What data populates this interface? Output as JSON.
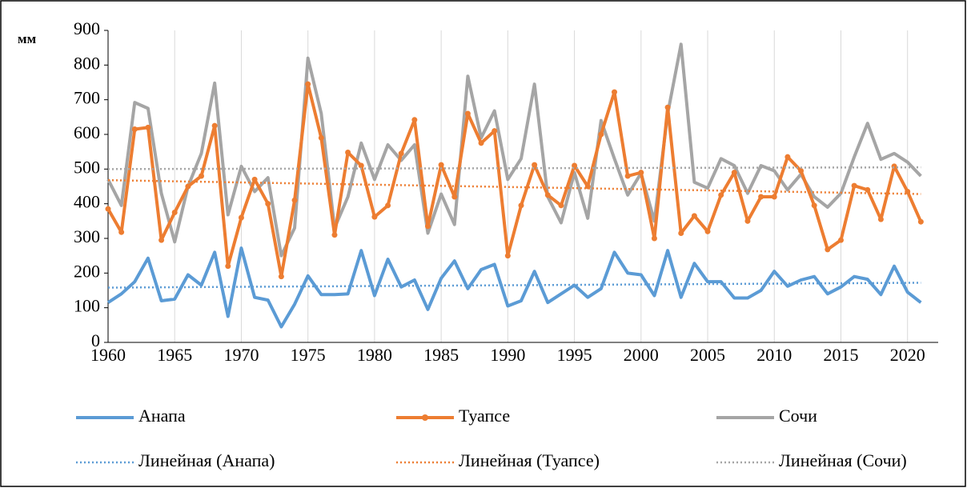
{
  "chart_data": {
    "type": "line",
    "y_label": "мм",
    "x": [
      1960,
      1961,
      1962,
      1963,
      1964,
      1965,
      1966,
      1967,
      1968,
      1969,
      1970,
      1971,
      1972,
      1973,
      1974,
      1975,
      1976,
      1977,
      1978,
      1979,
      1980,
      1981,
      1982,
      1983,
      1984,
      1985,
      1986,
      1987,
      1988,
      1989,
      1990,
      1991,
      1992,
      1993,
      1994,
      1995,
      1996,
      1997,
      1998,
      1999,
      2000,
      2001,
      2002,
      2003,
      2004,
      2005,
      2006,
      2007,
      2008,
      2009,
      2010,
      2011,
      2012,
      2013,
      2014,
      2015,
      2016,
      2017,
      2018,
      2019,
      2020,
      2021
    ],
    "xlim": [
      1960,
      2022.3
    ],
    "xticks": [
      1960,
      1965,
      1970,
      1975,
      1980,
      1985,
      1990,
      1995,
      2000,
      2005,
      2010,
      2015,
      2020
    ],
    "ylim": [
      0,
      900
    ],
    "yticks": [
      0,
      100,
      200,
      300,
      400,
      500,
      600,
      700,
      800,
      900
    ],
    "grid": true,
    "series": [
      {
        "name": "Анапа",
        "color": "#5b9bd5",
        "values": [
          115,
          140,
          175,
          243,
          120,
          125,
          195,
          165,
          260,
          75,
          272,
          130,
          122,
          45,
          110,
          192,
          138,
          138,
          140,
          265,
          135,
          240,
          160,
          180,
          95,
          185,
          235,
          155,
          210,
          225,
          105,
          120,
          205,
          115,
          140,
          165,
          130,
          155,
          260,
          200,
          195,
          135,
          265,
          130,
          228,
          175,
          175,
          128,
          128,
          150,
          205,
          162,
          180,
          190,
          140,
          160,
          190,
          182,
          138,
          220,
          145,
          115
        ]
      },
      {
        "name": "Туапсе",
        "color": "#ed7d31",
        "markers": true,
        "values": [
          385,
          318,
          615,
          620,
          295,
          375,
          450,
          480,
          625,
          220,
          360,
          470,
          400,
          190,
          410,
          745,
          590,
          310,
          548,
          510,
          362,
          395,
          545,
          642,
          335,
          512,
          420,
          660,
          575,
          610,
          250,
          395,
          512,
          425,
          395,
          510,
          450,
          600,
          722,
          480,
          490,
          300,
          678,
          315,
          365,
          320,
          425,
          490,
          350,
          420,
          420,
          535,
          495,
          395,
          268,
          295,
          452,
          440,
          355,
          508,
          435,
          348
        ]
      },
      {
        "name": "Сочи",
        "color": "#a5a5a5",
        "values": [
          470,
          395,
          692,
          675,
          430,
          290,
          450,
          545,
          748,
          368,
          508,
          435,
          475,
          250,
          330,
          820,
          660,
          330,
          420,
          575,
          470,
          570,
          525,
          570,
          315,
          428,
          340,
          768,
          590,
          668,
          470,
          530,
          745,
          420,
          345,
          490,
          358,
          640,
          530,
          425,
          488,
          350,
          660,
          860,
          462,
          445,
          530,
          510,
          430,
          510,
          495,
          440,
          485,
          420,
          390,
          430,
          535,
          632,
          528,
          545,
          520,
          480
        ]
      },
      {
        "name": "Линейная (Анапа)",
        "color": "#5b9bd5",
        "trend": true,
        "x": [
          1960,
          2021
        ],
        "values": [
          158,
          172
        ]
      },
      {
        "name": "Линейная (Туапсе)",
        "color": "#ed7d31",
        "trend": true,
        "x": [
          1960,
          2021
        ],
        "values": [
          468,
          428
        ]
      },
      {
        "name": "Линейная (Сочи)",
        "color": "#a5a5a5",
        "trend": true,
        "x": [
          1960,
          2021
        ],
        "values": [
          500,
          505
        ]
      }
    ]
  }
}
